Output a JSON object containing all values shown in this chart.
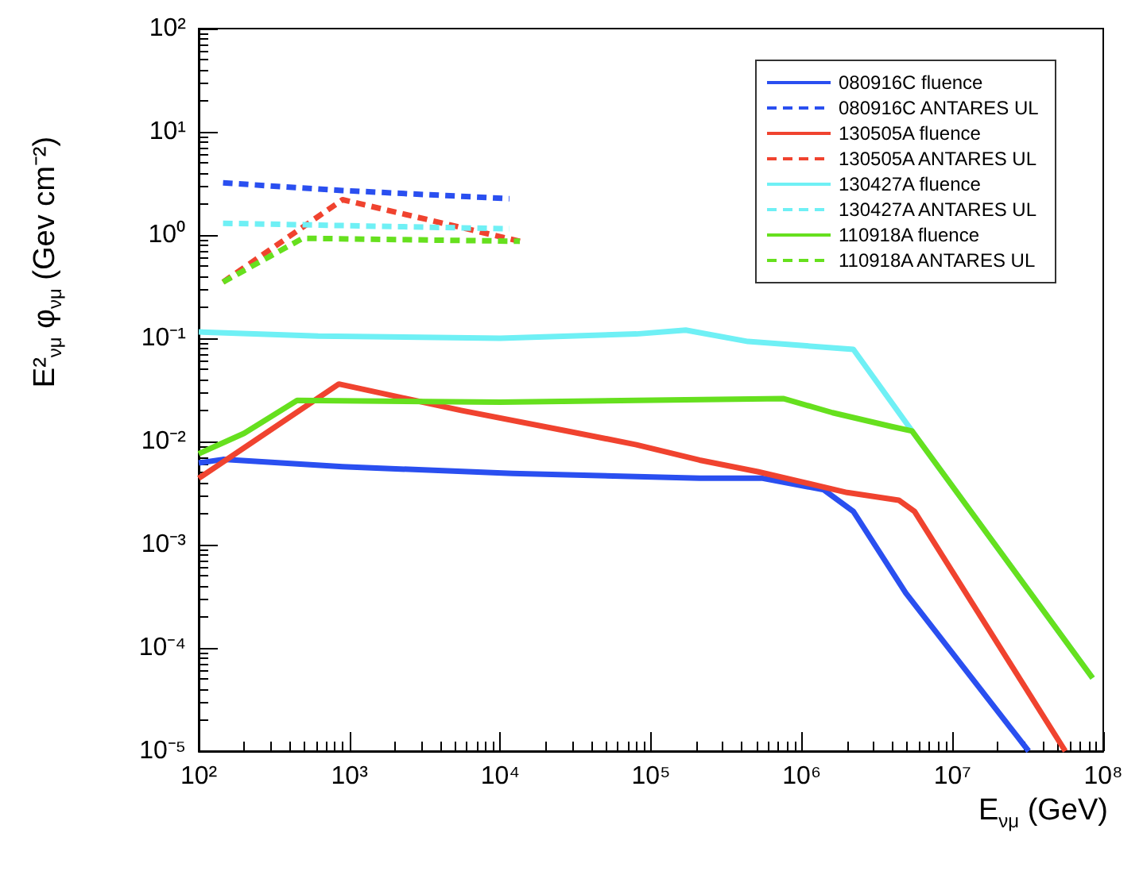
{
  "chart_data": {
    "type": "line",
    "xlabel": "E$_{νμ}$ (GeV)",
    "ylabel": "E²$_{νμ}$ φ$_{νμ}$ (Gev cm⁻²)",
    "log": "xy",
    "grid": false,
    "legend": "top right",
    "marker": "none",
    "xlim": [
      100,
      100000000
    ],
    "ylim": [
      1e-05,
      100
    ],
    "xticks": [
      {
        "value": 100,
        "label": "10²"
      },
      {
        "value": 1000,
        "label": "10³"
      },
      {
        "value": 10000,
        "label": "10⁴"
      },
      {
        "value": 100000,
        "label": "10⁵"
      },
      {
        "value": 1000000,
        "label": "10⁶"
      },
      {
        "value": 10000000,
        "label": "10⁷"
      },
      {
        "value": 100000000,
        "label": "10⁸"
      }
    ],
    "yticks": [
      {
        "value": 1e-05,
        "label": "10⁻⁵"
      },
      {
        "value": 0.0001,
        "label": "10⁻⁴"
      },
      {
        "value": 0.001,
        "label": "10⁻³"
      },
      {
        "value": 0.01,
        "label": "10⁻²"
      },
      {
        "value": 0.1,
        "label": "10⁻¹"
      },
      {
        "value": 1,
        "label": "10⁰"
      },
      {
        "value": 10,
        "label": "10¹"
      },
      {
        "value": 100,
        "label": "10²"
      }
    ],
    "series": [
      {
        "name": "080916C fluence",
        "color": "#2a4ff0",
        "line_style": "solid",
        "x": [
          100,
          145,
          900,
          12000,
          210000,
          550000,
          1400000,
          2200000,
          4900000,
          32000000
        ],
        "values": [
          0.0062,
          0.0067,
          0.0057,
          0.0049,
          0.0044,
          0.0044,
          0.0034,
          0.0021,
          0.00034,
          1e-05
        ]
      },
      {
        "name": "080916C ANTARES UL",
        "color": "#2a4ff0",
        "line_style": "dashed",
        "x": [
          145,
          900,
          11500
        ],
        "values": [
          3.2,
          2.7,
          2.25
        ]
      },
      {
        "name": "130505A fluence",
        "color": "#f0432f",
        "line_style": "solid",
        "x": [
          100,
          850,
          5500,
          28000,
          80000,
          210000,
          510000,
          2000000,
          4400000,
          5600000,
          56000000
        ],
        "values": [
          0.0044,
          0.036,
          0.02,
          0.0126,
          0.0093,
          0.0066,
          0.0051,
          0.0032,
          0.0027,
          0.0021,
          1e-05
        ]
      },
      {
        "name": "130505A ANTARES UL",
        "color": "#f0432f",
        "line_style": "dashed",
        "x": [
          145,
          900,
          13500
        ],
        "values": [
          0.35,
          2.2,
          0.87
        ]
      },
      {
        "name": "130427A fluence",
        "color": "#6ff0f5",
        "line_style": "solid",
        "x": [
          100,
          620,
          10000,
          80000,
          170000,
          440000,
          2200000,
          5400000,
          85000000
        ],
        "values": [
          0.115,
          0.105,
          0.1,
          0.11,
          0.12,
          0.093,
          0.078,
          0.0126,
          5.1e-05
        ]
      },
      {
        "name": "130427A ANTARES UL",
        "color": "#6ff0f5",
        "line_style": "dashed",
        "x": [
          145,
          11500
        ],
        "values": [
          1.3,
          1.15
        ]
      },
      {
        "name": "110918A fluence",
        "color": "#66e01e",
        "line_style": "solid",
        "x": [
          100,
          200,
          450,
          10000,
          80000,
          760000,
          1600000,
          3900000,
          5400000,
          85000000
        ],
        "values": [
          0.0076,
          0.012,
          0.025,
          0.024,
          0.025,
          0.026,
          0.019,
          0.014,
          0.0126,
          5.1e-05
        ]
      },
      {
        "name": "110918A ANTARES UL",
        "color": "#66e01e",
        "line_style": "dashed",
        "x": [
          145,
          490,
          13500
        ],
        "values": [
          0.35,
          0.93,
          0.87
        ]
      }
    ]
  }
}
